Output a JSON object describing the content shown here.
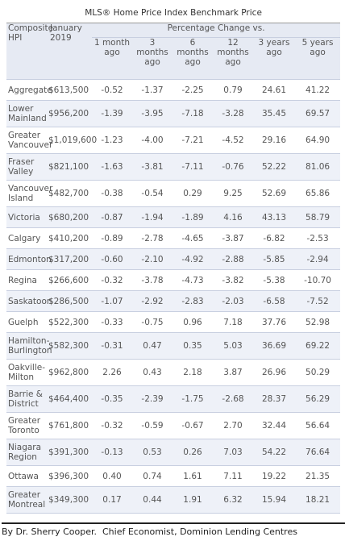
{
  "title": "MLS® Home Price Index Benchmark Price",
  "header": {
    "name": "Composite HPI",
    "price": "January 2019",
    "group": "Percentage Change vs.",
    "periods": [
      "1 month ago",
      "3 months ago",
      "6 months ago",
      "12 months ago",
      "3 years ago",
      "5 years ago"
    ]
  },
  "table": {
    "rows": [
      [
        "Aggregate",
        "$613,500",
        "-0.52",
        "-1.37",
        "-2.25",
        "0.79",
        "24.61",
        "41.22"
      ],
      [
        "Lower Mainland",
        "$956,200",
        "-1.39",
        "-3.95",
        "-7.18",
        "-3.28",
        "35.45",
        "69.57"
      ],
      [
        "Greater Vancouver",
        "$1,019,600",
        "-1.23",
        "-4.00",
        "-7.21",
        "-4.52",
        "29.16",
        "64.90"
      ],
      [
        "Fraser Valley",
        "$821,100",
        "-1.63",
        "-3.81",
        "-7.11",
        "-0.76",
        "52.22",
        "81.06"
      ],
      [
        "Vancouver Island",
        "$482,700",
        "-0.38",
        "-0.54",
        "0.29",
        "9.25",
        "52.69",
        "65.86"
      ],
      [
        "Victoria",
        "$680,200",
        "-0.87",
        "-1.94",
        "-1.89",
        "4.16",
        "43.13",
        "58.79"
      ],
      [
        "Calgary",
        "$410,200",
        "-0.89",
        "-2.78",
        "-4.65",
        "-3.87",
        "-6.82",
        "-2.53"
      ],
      [
        "Edmonton",
        "$317,200",
        "-0.60",
        "-2.10",
        "-4.92",
        "-2.88",
        "-5.85",
        "-2.94"
      ],
      [
        "Regina",
        "$266,600",
        "-0.32",
        "-3.78",
        "-4.73",
        "-3.82",
        "-5.38",
        "-10.70"
      ],
      [
        "Saskatoon",
        "$286,500",
        "-1.07",
        "-2.92",
        "-2.83",
        "-2.03",
        "-6.58",
        "-7.52"
      ],
      [
        "Guelph",
        "$522,300",
        "-0.33",
        "-0.75",
        "0.96",
        "7.18",
        "37.76",
        "52.98"
      ],
      [
        "Hamilton-Burlington",
        "$582,300",
        "-0.31",
        "0.47",
        "0.35",
        "5.03",
        "36.69",
        "69.22"
      ],
      [
        "Oakville-Milton",
        "$962,800",
        "2.26",
        "0.43",
        "2.18",
        "3.87",
        "26.96",
        "50.29"
      ],
      [
        "Barrie & District",
        "$464,400",
        "-0.35",
        "-2.39",
        "-1.75",
        "-2.68",
        "28.37",
        "56.29"
      ],
      [
        "Greater Toronto",
        "$761,800",
        "-0.32",
        "-0.59",
        "-0.67",
        "2.70",
        "32.44",
        "56.64"
      ],
      [
        "Niagara Region",
        "$391,300",
        "-0.13",
        "0.53",
        "0.26",
        "7.03",
        "54.22",
        "76.64"
      ],
      [
        "Ottawa",
        "$396,300",
        "0.40",
        "0.74",
        "1.61",
        "7.11",
        "19.22",
        "21.35"
      ],
      [
        "Greater Montreal",
        "$349,300",
        "0.17",
        "0.44",
        "1.91",
        "6.32",
        "15.94",
        "18.21"
      ]
    ]
  },
  "footer": "By Dr. Sherry Cooper.  Chief Economist, Dominion Lending Centres"
}
